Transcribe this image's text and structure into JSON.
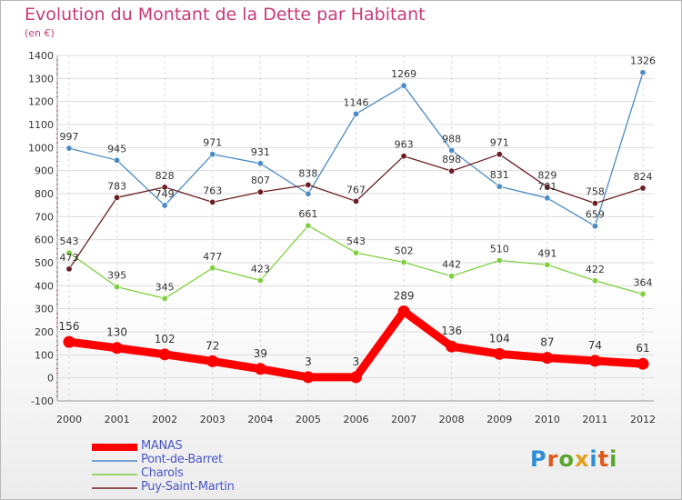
{
  "title": "Evolution du Montant de la Dette par Habitant",
  "unit": "(en €)",
  "logo": {
    "letters": [
      "P",
      "r",
      "o",
      "x",
      "i",
      "t",
      "i"
    ],
    "colors": [
      "#2e8fd6",
      "#e05a1c",
      "#5aa62c",
      "#e0a01c",
      "#2e8fd6",
      "#e05a1c",
      "#5aa62c"
    ]
  },
  "chart_data": {
    "type": "line",
    "x": [
      "2000",
      "2001",
      "2002",
      "2003",
      "2004",
      "2005",
      "2006",
      "2007",
      "2008",
      "2009",
      "2010",
      "2011",
      "2012"
    ],
    "ylim": [
      -100,
      1400
    ],
    "yticks": [
      "-100",
      "0",
      "100",
      "200",
      "300",
      "400",
      "500",
      "600",
      "700",
      "800",
      "900",
      "1000",
      "1100",
      "1200",
      "1300",
      "1400"
    ],
    "grid": true,
    "legend": "bottom-left",
    "series": [
      {
        "name": "MANAS",
        "color": "#ff0000",
        "values": [
          156,
          130,
          102,
          72,
          39,
          3,
          3,
          289,
          136,
          104,
          87,
          74,
          61
        ],
        "labels": [
          "156",
          "130",
          "102",
          "72",
          "39",
          "3",
          "3",
          "289",
          "136",
          "104",
          "87",
          "74",
          "61"
        ]
      },
      {
        "name": "Pont-de-Barret",
        "color": "#4b8bc4",
        "values": [
          997,
          945,
          749,
          971,
          931,
          799,
          1146,
          1269,
          988,
          831,
          781,
          659,
          1326
        ],
        "labels": [
          "997",
          "945",
          "749",
          "971",
          "931",
          "",
          "1146",
          "1269",
          "988",
          "831",
          "781",
          "659",
          "1326"
        ]
      },
      {
        "name": "Charols",
        "color": "#7ed040",
        "values": [
          543,
          395,
          345,
          477,
          423,
          661,
          543,
          502,
          442,
          510,
          491,
          422,
          364
        ],
        "labels": [
          "543",
          "395",
          "345",
          "477",
          "423",
          "661",
          "543",
          "502",
          "442",
          "510",
          "491",
          "422",
          "364"
        ]
      },
      {
        "name": "Puy-Saint-Martin",
        "color": "#6b1f24",
        "values": [
          473,
          783,
          828,
          763,
          807,
          838,
          767,
          963,
          898,
          971,
          829,
          758,
          824
        ],
        "labels": [
          "473",
          "783",
          "828",
          "763",
          "807",
          "838",
          "767",
          "963",
          "898",
          "971",
          "829",
          "758",
          "824"
        ]
      }
    ]
  }
}
